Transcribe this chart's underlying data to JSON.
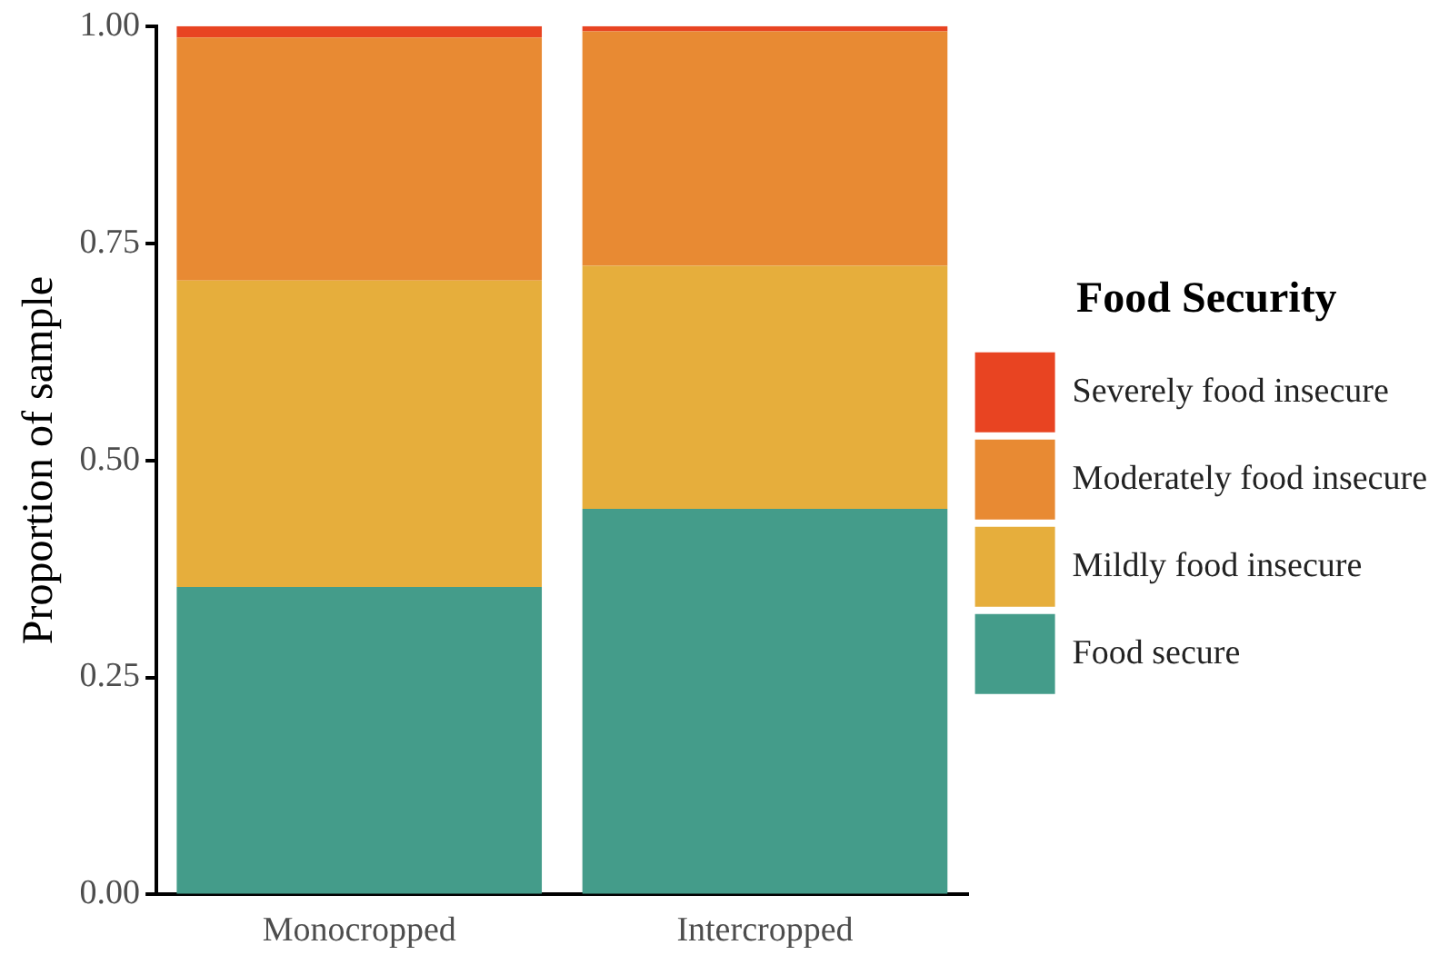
{
  "chart_data": {
    "type": "bar",
    "stacked": true,
    "ylabel": "Proportion of sample",
    "legend_title": "Food Security",
    "legend": "right",
    "categories": [
      "Monocropped",
      "Intercropped"
    ],
    "series": [
      {
        "name": "Food secure",
        "color": "#449c8a",
        "values": [
          0.354,
          0.444
        ]
      },
      {
        "name": "Mildly food insecure",
        "color": "#e6ae3c",
        "values": [
          0.353,
          0.28
        ]
      },
      {
        "name": "Moderately food insecure",
        "color": "#e88a33",
        "values": [
          0.28,
          0.27
        ]
      },
      {
        "name": "Severely food insecure",
        "color": "#e84422",
        "values": [
          0.013,
          0.006
        ]
      }
    ],
    "ylim": [
      0,
      1
    ],
    "yticks": [
      {
        "value": 0,
        "label": "0.00"
      },
      {
        "value": 0.25,
        "label": "0.25"
      },
      {
        "value": 0.5,
        "label": "0.50"
      },
      {
        "value": 0.75,
        "label": "0.75"
      },
      {
        "value": 1,
        "label": "1.00"
      }
    ],
    "grid": false
  }
}
